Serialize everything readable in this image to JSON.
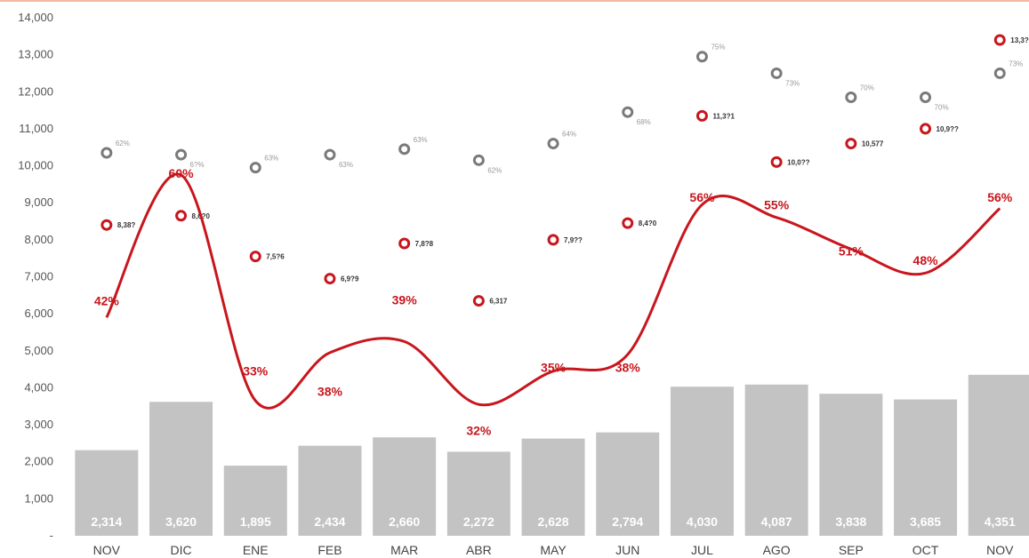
{
  "chart_data": {
    "type": "bar",
    "ylim": [
      0,
      14000
    ],
    "yticks": [
      "-",
      "1,000",
      "2,000",
      "3,000",
      "4,000",
      "5,000",
      "6,000",
      "7,000",
      "8,000",
      "9,000",
      "10,000",
      "11,000",
      "12,000",
      "13,000",
      "14,000"
    ],
    "categories": [
      "NOV",
      "DIC",
      "ENE",
      "FEB",
      "MAR",
      "ABR",
      "MAY",
      "JUN",
      "JUL",
      "AGO",
      "SEP",
      "OCT",
      "NOV"
    ],
    "colors": {
      "bars": "#c3c3c3",
      "line": "#c8161d",
      "red_points": "#c8161d",
      "gray_points": "#7a7a7a",
      "frame_top": "#f2b8a0"
    },
    "series": [
      {
        "kind": "bar",
        "values": [
          2314,
          3620,
          1895,
          2434,
          2660,
          2272,
          2628,
          2794,
          4030,
          4087,
          3838,
          3685,
          4351
        ],
        "labels": [
          "2,314",
          "3,620",
          "1,895",
          "2,434",
          "2,660",
          "2,272",
          "2,628",
          "2,794",
          "4,030",
          "4,087",
          "3,838",
          "3,685",
          "4,351"
        ]
      },
      {
        "kind": "line",
        "values": [
          5900,
          9750,
          3650,
          4950,
          5250,
          3550,
          4450,
          4900,
          8950,
          8600,
          7750,
          7100,
          8850
        ],
        "labels": [
          "42%",
          "60%",
          "33%",
          "38%",
          "39%",
          "32%",
          "35%",
          "38%",
          "56%",
          "55%",
          "51%",
          "48%",
          "56%"
        ],
        "label_values": [
          6350,
          9800,
          4450,
          3900,
          6380,
          2850,
          4550,
          4550,
          9150,
          8950,
          7700,
          7450,
          9150
        ]
      },
      {
        "kind": "scatter",
        "values": [
          8400,
          8650,
          7550,
          6950,
          7900,
          6350,
          8000,
          8450,
          11350,
          10100,
          10600,
          11000,
          13400
        ],
        "labels": [
          "8,38?",
          "8,6?0",
          "7,5?6",
          "6,9?9",
          "7,8?8",
          "6,317",
          "7,9??",
          "8,4?0",
          "11,3?1",
          "10,0??",
          "10,577",
          "10,9??",
          "13,3?"
        ]
      },
      {
        "kind": "scatter",
        "values": [
          10350,
          10300,
          9950,
          10300,
          10450,
          10150,
          10600,
          11450,
          12950,
          12500,
          11850,
          11850,
          12500
        ],
        "labels": [
          "62%",
          "6?%",
          "63%",
          "63%",
          "63%",
          "62%",
          "64%",
          "68%",
          "75%",
          "73%",
          "70%",
          "70%",
          "73%"
        ]
      }
    ]
  }
}
